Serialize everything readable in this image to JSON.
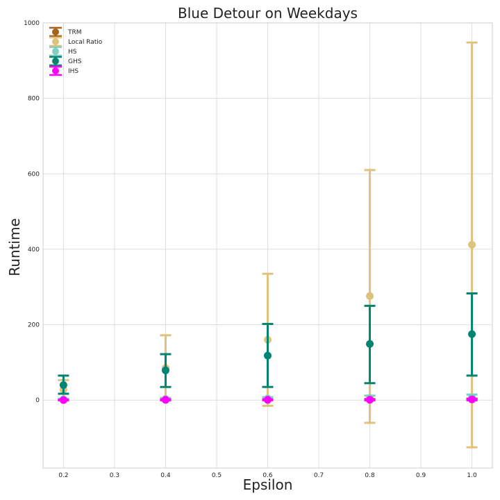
{
  "chart_data": {
    "type": "scatter",
    "title": "Blue Detour on Weekdays",
    "xlabel": "Epsilon",
    "ylabel": "Runtime",
    "xlim": [
      0.16,
      1.04
    ],
    "ylim": [
      -180,
      1000
    ],
    "xticks": [
      "0.2",
      "0.3",
      "0.4",
      "0.5",
      "0.6",
      "0.7",
      "0.8",
      "0.9",
      "1.0"
    ],
    "yticks": [
      "0",
      "200",
      "400",
      "600",
      "800",
      "1000"
    ],
    "grid": true,
    "legend_position": "top-left",
    "series": [
      {
        "name": "TRM",
        "color": "#a6611a",
        "x": [
          0.2,
          0.4,
          0.6,
          0.8,
          1.0
        ],
        "y": [
          0.5,
          1,
          1,
          1.5,
          2
        ],
        "err_low": [
          0,
          0,
          0,
          0,
          0
        ],
        "err_high": [
          1,
          2,
          2,
          3,
          4
        ]
      },
      {
        "name": "Local Ratio",
        "color": "#dfc27d",
        "x": [
          0.2,
          0.4,
          0.6,
          0.8,
          1.0
        ],
        "y": [
          28,
          85,
          160,
          276,
          412
        ],
        "err_low": [
          3,
          0,
          -15,
          -60,
          -125
        ],
        "err_high": [
          53,
          172,
          335,
          610,
          948
        ]
      },
      {
        "name": "HS",
        "color": "#80cdc1",
        "x": [
          0.2,
          0.4,
          0.6,
          0.8,
          1.0
        ],
        "y": [
          2,
          3,
          4,
          6,
          8
        ],
        "err_low": [
          0,
          0,
          0,
          0,
          0
        ],
        "err_high": [
          4,
          6,
          8,
          12,
          15
        ]
      },
      {
        "name": "GHS",
        "color": "#018571",
        "x": [
          0.2,
          0.4,
          0.6,
          0.8,
          1.0
        ],
        "y": [
          40,
          79,
          118,
          149,
          175
        ],
        "err_low": [
          17,
          35,
          35,
          45,
          65
        ],
        "err_high": [
          65,
          122,
          202,
          250,
          283
        ]
      },
      {
        "name": "IHS",
        "color": "#ff00ff",
        "x": [
          0.2,
          0.4,
          0.6,
          0.8,
          1.0
        ],
        "y": [
          0.5,
          1,
          1,
          1,
          2
        ],
        "err_low": [
          0,
          0,
          0,
          0,
          0
        ],
        "err_high": [
          1,
          2,
          2,
          2,
          3
        ]
      }
    ]
  }
}
